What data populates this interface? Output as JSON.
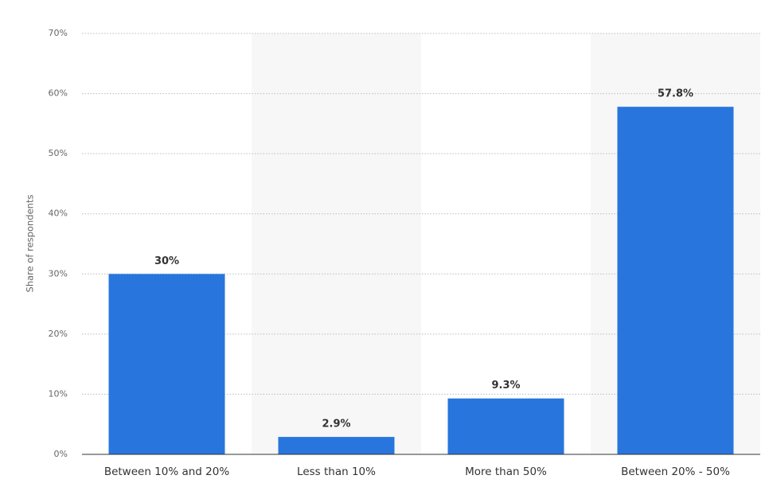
{
  "chart_data": {
    "type": "bar",
    "y_label": "Share of respondents",
    "categories": [
      "Between 10% and 20%",
      "Less than 10%",
      "More than 50%",
      "Between 20% - 50%"
    ],
    "values": [
      30,
      2.9,
      9.3,
      57.8
    ],
    "value_labels": [
      "30%",
      "2.9%",
      "9.3%",
      "57.8%"
    ],
    "color": "#2876dd",
    "ylim": [
      0,
      70
    ],
    "yticks": [
      {
        "value": 0,
        "label": "0%"
      },
      {
        "value": 10,
        "label": "10%"
      },
      {
        "value": 20,
        "label": "20%"
      },
      {
        "value": 30,
        "label": "30%"
      },
      {
        "value": 40,
        "label": "40%"
      },
      {
        "value": 50,
        "label": "50%"
      },
      {
        "value": 60,
        "label": "60%"
      },
      {
        "value": 70,
        "label": "70%"
      }
    ],
    "grid": true
  }
}
